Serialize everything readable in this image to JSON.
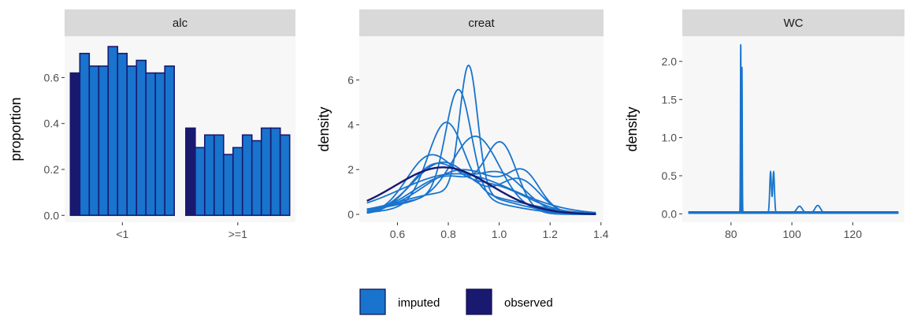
{
  "colors": {
    "imputed": "#1874CD",
    "observed": "#191970",
    "panel_bg": "#f7f7f7",
    "strip_bg": "#d9d9d9"
  },
  "legend": {
    "items": [
      {
        "label": "imputed",
        "color": "#1874CD"
      },
      {
        "label": "observed",
        "color": "#191970"
      }
    ]
  },
  "chart_data": [
    {
      "type": "bar",
      "facet": "alc",
      "ylabel": "proportion",
      "xlabel": "",
      "ylim": [
        -0.03,
        0.78
      ],
      "yticks": [
        0.0,
        0.2,
        0.4,
        0.6
      ],
      "ytick_labels": [
        "0.0",
        "0.2",
        "0.4",
        "0.6"
      ],
      "categories": [
        "<1",
        ">=1"
      ],
      "series": [
        {
          "group": "observed",
          "values": [
            0.62,
            0.38
          ]
        },
        {
          "group": "imputed",
          "values": [
            0.705,
            0.295
          ]
        },
        {
          "group": "imputed",
          "values": [
            0.65,
            0.35
          ]
        },
        {
          "group": "imputed",
          "values": [
            0.65,
            0.35
          ]
        },
        {
          "group": "imputed",
          "values": [
            0.735,
            0.265
          ]
        },
        {
          "group": "imputed",
          "values": [
            0.705,
            0.295
          ]
        },
        {
          "group": "imputed",
          "values": [
            0.65,
            0.35
          ]
        },
        {
          "group": "imputed",
          "values": [
            0.675,
            0.325
          ]
        },
        {
          "group": "imputed",
          "values": [
            0.62,
            0.38
          ]
        },
        {
          "group": "imputed",
          "values": [
            0.62,
            0.38
          ]
        },
        {
          "group": "imputed",
          "values": [
            0.65,
            0.35
          ]
        }
      ]
    },
    {
      "type": "line",
      "facet": "creat",
      "ylabel": "density",
      "xlabel": "",
      "xlim": [
        0.45,
        1.41
      ],
      "ylim": [
        -0.35,
        7.95
      ],
      "xticks": [
        0.6,
        0.8,
        1.0,
        1.2,
        1.4
      ],
      "xtick_labels": [
        "0.6",
        "0.8",
        "1.0",
        "1.2",
        "1.4"
      ],
      "yticks": [
        0,
        2,
        4,
        6
      ],
      "ytick_labels": [
        "0",
        "2",
        "4",
        "6"
      ],
      "x_range": [
        0.48,
        1.38
      ],
      "series": [
        {
          "group": "observed",
          "components": [
            [
              0.78,
              0.19,
              1.0
            ]
          ]
        },
        {
          "group": "imputed",
          "components": [
            [
              0.88,
              0.035,
              0.5
            ],
            [
              0.82,
              0.2,
              0.5
            ]
          ]
        },
        {
          "group": "imputed",
          "components": [
            [
              0.84,
              0.05,
              0.6
            ],
            [
              0.8,
              0.2,
              0.4
            ]
          ]
        },
        {
          "group": "imputed",
          "components": [
            [
              0.79,
              0.07,
              0.6
            ],
            [
              0.9,
              0.2,
              0.4
            ]
          ]
        },
        {
          "group": "imputed",
          "components": [
            [
              0.91,
              0.09,
              0.65
            ],
            [
              0.8,
              0.2,
              0.35
            ]
          ]
        },
        {
          "group": "imputed",
          "components": [
            [
              1.01,
              0.06,
              0.4
            ],
            [
              0.8,
              0.14,
              0.6
            ]
          ]
        },
        {
          "group": "imputed",
          "components": [
            [
              0.75,
              0.1,
              0.55
            ],
            [
              1.0,
              0.1,
              0.45
            ]
          ]
        },
        {
          "group": "imputed",
          "components": [
            [
              0.78,
              0.12,
              0.7
            ],
            [
              1.08,
              0.08,
              0.3
            ]
          ]
        },
        {
          "group": "imputed",
          "components": [
            [
              0.83,
              0.22,
              1.0
            ]
          ]
        },
        {
          "group": "imputed",
          "components": [
            [
              0.72,
              0.09,
              0.5
            ],
            [
              0.95,
              0.15,
              0.5
            ]
          ]
        },
        {
          "group": "imputed",
          "components": [
            [
              0.86,
              0.16,
              0.8
            ],
            [
              1.1,
              0.06,
              0.2
            ]
          ]
        }
      ]
    },
    {
      "type": "line",
      "facet": "WC",
      "ylabel": "density",
      "xlabel": "",
      "xlim": [
        64,
        137
      ],
      "ylim": [
        -0.11,
        2.33
      ],
      "xticks": [
        80,
        100,
        120
      ],
      "xtick_labels": [
        "80",
        "100",
        "120"
      ],
      "yticks": [
        0.0,
        0.5,
        1.0,
        1.5,
        2.0
      ],
      "ytick_labels": [
        "0.0",
        "0.5",
        "1.0",
        "1.5",
        "2.0"
      ],
      "x_range": [
        66,
        135
      ],
      "series": [
        {
          "group": "observed",
          "base": 0.02,
          "spikes": []
        },
        {
          "group": "imputed",
          "base": 0.01,
          "spikes": [
            [
              83.2,
              0.1,
              2.22
            ]
          ]
        },
        {
          "group": "imputed",
          "base": 0.01,
          "spikes": [
            [
              83.6,
              0.1,
              1.92
            ]
          ]
        },
        {
          "group": "imputed",
          "base": 0.01,
          "spikes": [
            [
              93.0,
              0.28,
              0.54
            ],
            [
              94.0,
              0.28,
              0.54
            ]
          ]
        },
        {
          "group": "imputed",
          "base": 0.01,
          "spikes": [
            [
              102.5,
              0.9,
              0.09
            ],
            [
              108.5,
              0.9,
              0.1
            ]
          ]
        },
        {
          "group": "imputed",
          "base": 0.015,
          "spikes": []
        },
        {
          "group": "imputed",
          "base": 0.02,
          "spikes": []
        }
      ]
    }
  ]
}
